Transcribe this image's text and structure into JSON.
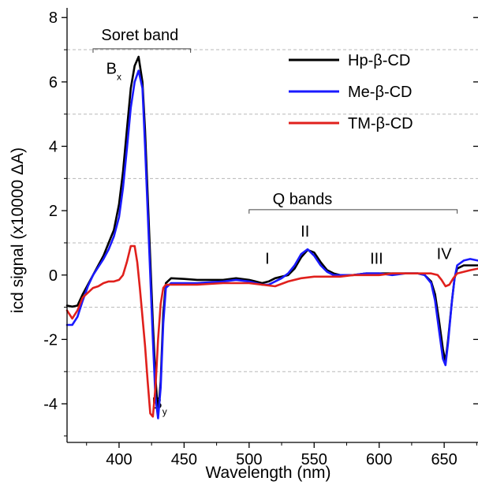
{
  "chart_data": {
    "type": "line",
    "title": "",
    "xlabel": "Wavelength (nm)",
    "ylabel": "icd signal (x10000 ΔA)",
    "xlim": [
      360,
      676
    ],
    "ylim": [
      -5.2,
      8.3
    ],
    "xticks": [
      400,
      450,
      500,
      550,
      600,
      650
    ],
    "yticks": [
      -4,
      -2,
      0,
      2,
      4,
      6,
      8
    ],
    "grid": "dashed horizontal lines at odd values",
    "legend_position": "top-right",
    "series": [
      {
        "name": "Hp-β-CD",
        "color": "#000000",
        "x": [
          360,
          364,
          368,
          372,
          376,
          380,
          384,
          388,
          392,
          396,
          400,
          403,
          406,
          409,
          412,
          415,
          418,
          420,
          422,
          424,
          426,
          428,
          430,
          432,
          434,
          436,
          440,
          450,
          460,
          480,
          490,
          500,
          505,
          510,
          515,
          520,
          525,
          530,
          535,
          540,
          545,
          550,
          555,
          560,
          565,
          570,
          580,
          590,
          600,
          610,
          620,
          630,
          635,
          640,
          643,
          646,
          649,
          651,
          653,
          656,
          658,
          660,
          665,
          670,
          676
        ],
        "y": [
          -0.95,
          -0.98,
          -0.95,
          -0.6,
          -0.3,
          0.0,
          0.3,
          0.6,
          1.0,
          1.4,
          2.2,
          3.2,
          4.5,
          5.8,
          6.5,
          6.78,
          6.0,
          4.5,
          2.5,
          0.5,
          -1.5,
          -3.2,
          -4.3,
          -3.3,
          -1.2,
          -0.25,
          -0.1,
          -0.12,
          -0.15,
          -0.15,
          -0.1,
          -0.15,
          -0.2,
          -0.25,
          -0.2,
          -0.1,
          -0.05,
          0.0,
          0.2,
          0.55,
          0.78,
          0.7,
          0.4,
          0.15,
          0.05,
          0.0,
          0.0,
          0.05,
          0.05,
          0.05,
          0.05,
          0.05,
          0.0,
          -0.2,
          -0.6,
          -1.4,
          -2.3,
          -2.7,
          -2.0,
          -0.8,
          -0.1,
          0.2,
          0.3,
          0.3,
          0.3
        ]
      },
      {
        "name": "Me-β-CD",
        "color": "#1a1aff",
        "x": [
          360,
          364,
          368,
          372,
          376,
          380,
          384,
          388,
          392,
          396,
          400,
          403,
          406,
          409,
          412,
          415,
          418,
          420,
          422,
          424,
          426,
          428,
          430,
          432,
          434,
          436,
          440,
          450,
          460,
          480,
          490,
          500,
          505,
          510,
          515,
          520,
          525,
          530,
          535,
          540,
          545,
          550,
          555,
          560,
          565,
          570,
          580,
          590,
          600,
          610,
          620,
          630,
          635,
          640,
          643,
          646,
          649,
          651,
          653,
          656,
          658,
          660,
          665,
          670,
          676
        ],
        "y": [
          -1.55,
          -1.55,
          -1.3,
          -0.8,
          -0.35,
          0.0,
          0.25,
          0.5,
          0.8,
          1.2,
          1.8,
          2.7,
          3.9,
          5.2,
          6.0,
          6.35,
          5.8,
          4.0,
          2.0,
          0.0,
          -2.0,
          -3.8,
          -4.45,
          -3.5,
          -1.5,
          -0.4,
          -0.25,
          -0.25,
          -0.25,
          -0.2,
          -0.15,
          -0.2,
          -0.25,
          -0.3,
          -0.3,
          -0.2,
          -0.1,
          0.05,
          0.3,
          0.65,
          0.8,
          0.6,
          0.3,
          0.1,
          0.0,
          0.0,
          0.0,
          0.05,
          0.05,
          0.0,
          0.05,
          0.05,
          0.0,
          -0.25,
          -0.8,
          -1.7,
          -2.6,
          -2.8,
          -2.1,
          -0.8,
          -0.1,
          0.3,
          0.45,
          0.5,
          0.45
        ]
      },
      {
        "name": "TM-β-CD",
        "color": "#e0201c",
        "x": [
          360,
          364,
          368,
          372,
          376,
          380,
          384,
          388,
          392,
          396,
          400,
          403,
          406,
          409,
          412,
          414,
          416,
          418,
          420,
          422,
          424,
          426,
          428,
          430,
          432,
          434,
          436,
          440,
          450,
          460,
          480,
          500,
          510,
          520,
          530,
          540,
          550,
          560,
          570,
          580,
          590,
          600,
          610,
          620,
          630,
          640,
          645,
          648,
          651,
          654,
          657,
          660,
          670,
          676
        ],
        "y": [
          -1.1,
          -1.35,
          -1.1,
          -0.7,
          -0.55,
          -0.4,
          -0.35,
          -0.25,
          -0.2,
          -0.2,
          -0.15,
          0.0,
          0.4,
          0.9,
          0.9,
          0.4,
          -0.4,
          -1.3,
          -2.2,
          -3.3,
          -4.3,
          -4.4,
          -3.5,
          -2.0,
          -0.9,
          -0.4,
          -0.3,
          -0.3,
          -0.3,
          -0.3,
          -0.25,
          -0.25,
          -0.3,
          -0.35,
          -0.2,
          -0.1,
          -0.05,
          -0.05,
          -0.05,
          0.0,
          0.0,
          0.0,
          0.05,
          0.05,
          0.05,
          0.05,
          0.0,
          -0.15,
          -0.35,
          -0.3,
          -0.1,
          0.05,
          0.15,
          0.2
        ]
      }
    ],
    "annotations": [
      {
        "text": "Soret band",
        "x": 416,
        "y": 7.3
      },
      {
        "text": "B",
        "sub": "x",
        "x": 396,
        "y": 6.25
      },
      {
        "text": "B",
        "sub": "y",
        "x": 431,
        "y": -4.15
      },
      {
        "text": "Q bands",
        "x": 541,
        "y": 2.2
      },
      {
        "text": "I",
        "x": 514,
        "y": 0.35
      },
      {
        "text": "II",
        "x": 543,
        "y": 1.2
      },
      {
        "text": "III",
        "x": 598,
        "y": 0.35
      },
      {
        "text": "IV",
        "x": 650,
        "y": 0.5
      }
    ],
    "brackets": [
      {
        "label": "Soret band",
        "x_from": 380,
        "x_to": 455,
        "y": 7.03
      },
      {
        "label": "Q bands",
        "x_from": 500,
        "x_to": 660,
        "y": 2.03
      }
    ]
  }
}
